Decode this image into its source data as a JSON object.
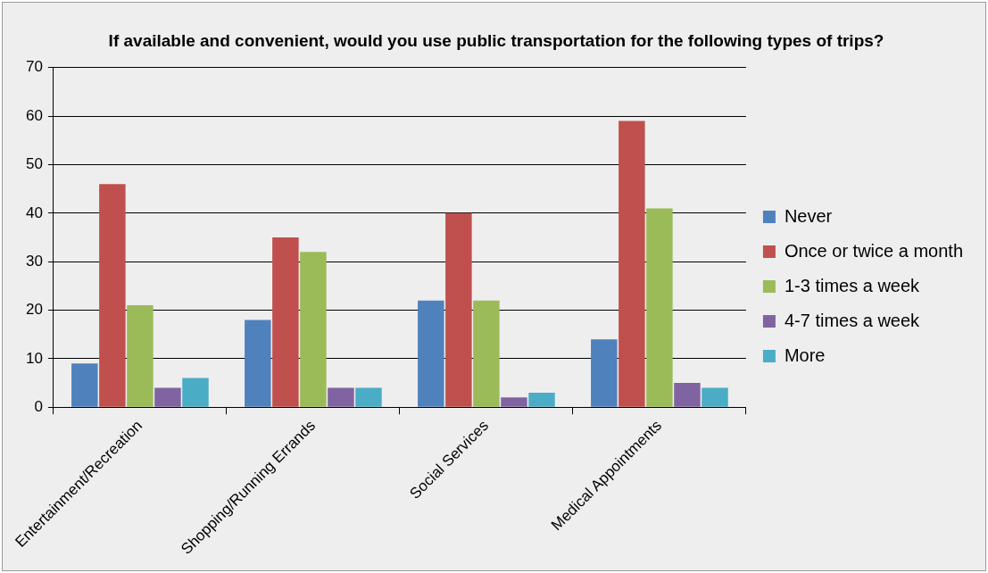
{
  "chart_data": {
    "type": "bar",
    "title": "If available and convenient, would you use public transportation for the following types of trips?",
    "categories": [
      "Entertainment/Recreation",
      "Shopping/Running Errands",
      "Social Services",
      "Medical Appointments"
    ],
    "series": [
      {
        "name": "Never",
        "color": "#4f81bd",
        "values": [
          9,
          18,
          22,
          14
        ]
      },
      {
        "name": "Once or twice a month",
        "color": "#c0504d",
        "values": [
          46,
          35,
          40,
          59
        ]
      },
      {
        "name": "1-3 times a week",
        "color": "#9bbb59",
        "values": [
          21,
          32,
          22,
          41
        ]
      },
      {
        "name": "4-7 times a week",
        "color": "#8064a2",
        "values": [
          4,
          4,
          2,
          5
        ]
      },
      {
        "name": "More",
        "color": "#4bacc6",
        "values": [
          6,
          4,
          3,
          4
        ]
      }
    ],
    "ylim": [
      0,
      70
    ],
    "yticks": [
      0,
      10,
      20,
      30,
      40,
      50,
      60,
      70
    ],
    "grid": "y",
    "legend": "right"
  }
}
